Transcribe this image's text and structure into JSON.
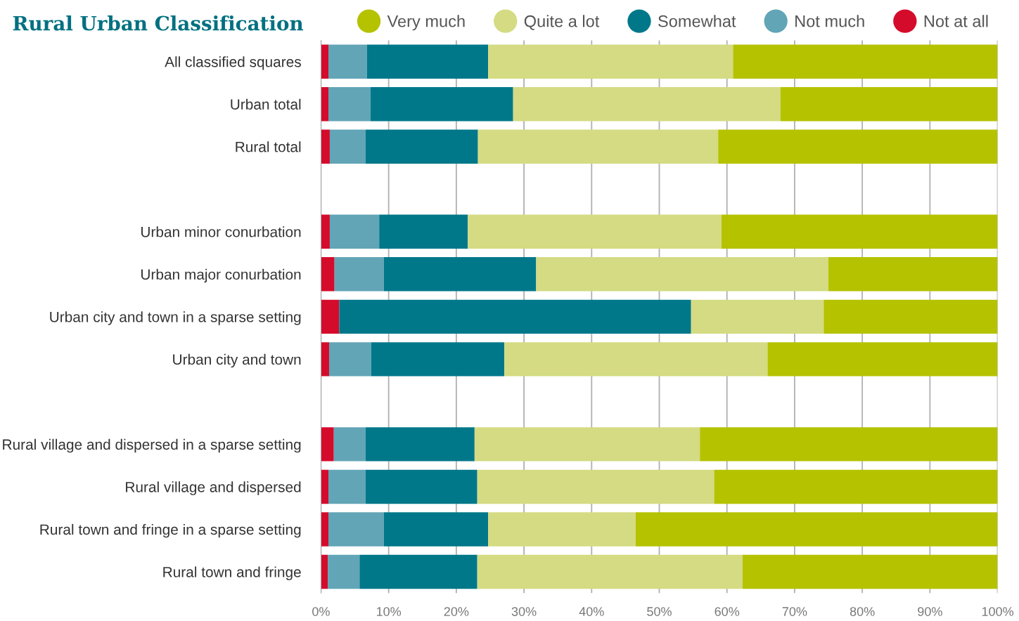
{
  "chart_data": {
    "type": "bar",
    "orientation": "horizontal",
    "stacked": true,
    "title": "Rural Urban Classification",
    "categories": [
      "All classified squares",
      "Urban total",
      "Rural total",
      null,
      "Urban minor conurbation",
      "Urban major conurbation",
      "Urban city and town in a sparse setting",
      "Urban city and town",
      null,
      "Rural village and dispersed in a sparse setting",
      "Rural village and dispersed",
      "Rural town and fringe in a sparse setting",
      "Rural town and fringe"
    ],
    "series": [
      {
        "name": "Not at all",
        "color": "#d50b2c",
        "values": [
          1.1,
          1.1,
          1.3,
          null,
          1.3,
          2.0,
          2.7,
          1.2,
          null,
          1.9,
          1.1,
          1.1,
          1.0
        ]
      },
      {
        "name": "Not much",
        "color": "#62a5b6",
        "values": [
          5.7,
          6.2,
          5.3,
          null,
          7.3,
          7.3,
          0,
          6.2,
          null,
          4.7,
          5.5,
          8.2,
          4.7
        ]
      },
      {
        "name": "Somewhat",
        "color": "#00788a",
        "values": [
          17.9,
          21.1,
          16.6,
          null,
          13.1,
          22.5,
          52.0,
          19.7,
          null,
          16.1,
          16.5,
          15.4,
          17.4
        ]
      },
      {
        "name": "Quite a lot",
        "color": "#d4db82",
        "values": [
          36.2,
          39.5,
          35.5,
          null,
          37.5,
          43.2,
          19.6,
          38.9,
          null,
          33.3,
          35.0,
          21.8,
          39.2
        ]
      },
      {
        "name": "Very much",
        "color": "#b5c200",
        "values": [
          39.1,
          32.1,
          41.3,
          null,
          40.8,
          25.0,
          25.7,
          34.0,
          null,
          44.0,
          41.9,
          53.5,
          37.7
        ]
      }
    ],
    "xlim": [
      0,
      100
    ],
    "xticks": [
      {
        "value": 0,
        "label": "0%"
      },
      {
        "value": 10,
        "label": "10%"
      },
      {
        "value": 20,
        "label": "20%"
      },
      {
        "value": 30,
        "label": "30%"
      },
      {
        "value": 40,
        "label": "40%"
      },
      {
        "value": 50,
        "label": "50%"
      },
      {
        "value": 60,
        "label": "60%"
      },
      {
        "value": 70,
        "label": "70%"
      },
      {
        "value": 80,
        "label": "80%"
      },
      {
        "value": 90,
        "label": "90%"
      },
      {
        "value": 100,
        "label": "100%"
      }
    ],
    "grid": "x",
    "legend": "top",
    "marker": "circle"
  }
}
